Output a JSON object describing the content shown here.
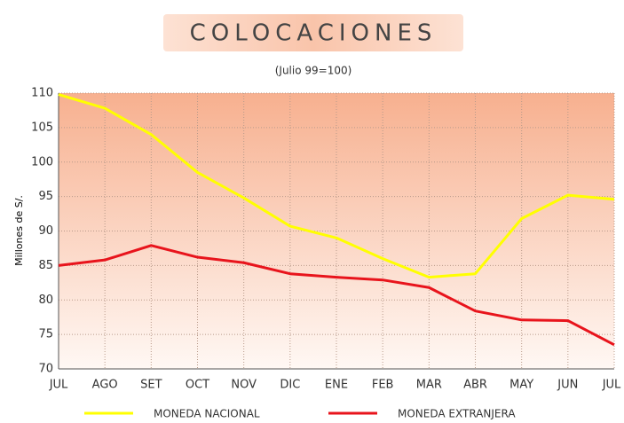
{
  "chart_data": {
    "type": "line",
    "title": "COLOCACIONES",
    "subtitle": "(Julio 99=100)",
    "y_label": "Millones de S/.",
    "categories": [
      "JUL",
      "AGO",
      "SET",
      "OCT",
      "NOV",
      "DIC",
      "ENE",
      "FEB",
      "MAR",
      "ABR",
      "MAY",
      "JUN",
      "JUL"
    ],
    "series": [
      {
        "name": "MONEDA NACIONAL",
        "color": "#ffff00",
        "values": [
          109.8,
          107.8,
          104,
          98.5,
          94.8,
          90.7,
          89,
          86,
          83.3,
          83.8,
          91.8,
          95.2,
          94.6
        ]
      },
      {
        "name": "MONEDA EXTRANJERA",
        "color": "#e8141c",
        "values": [
          85,
          85.8,
          87.9,
          86.2,
          85.4,
          83.8,
          83.3,
          82.9,
          81.8,
          78.4,
          77.1,
          77,
          73.5
        ]
      }
    ],
    "ylim": [
      70,
      110
    ],
    "yticks": [
      70,
      75,
      80,
      85,
      90,
      95,
      100,
      105,
      110
    ],
    "grid": true
  }
}
